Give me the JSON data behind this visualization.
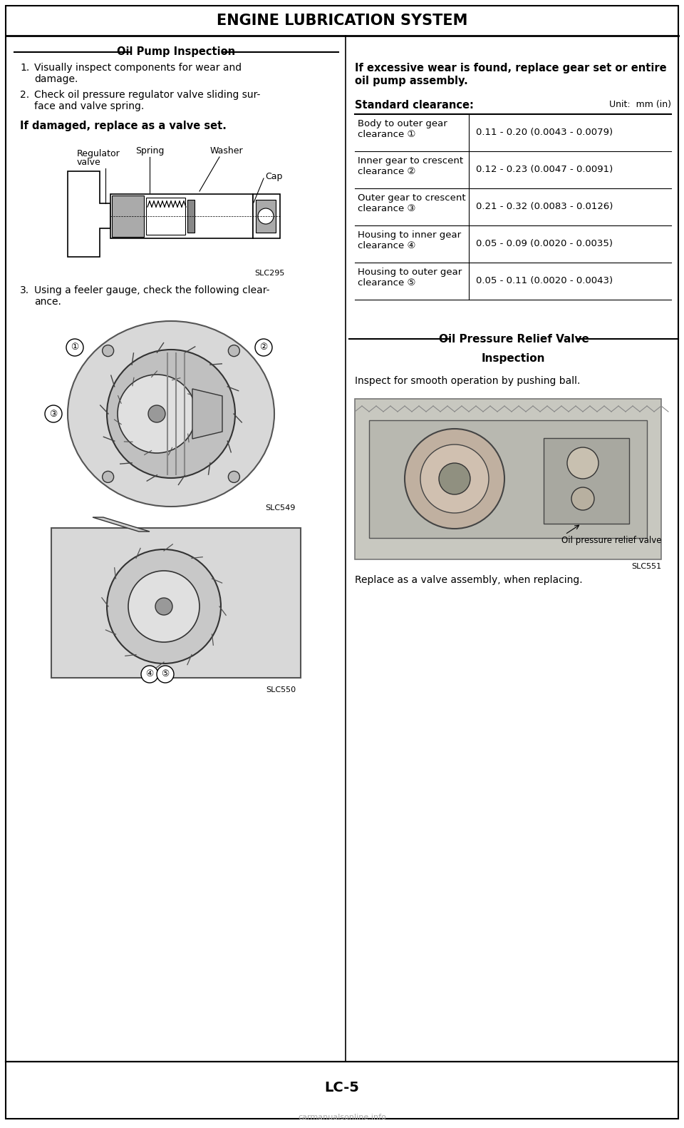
{
  "page_title": "ENGINE LUBRICATION SYSTEM",
  "page_number": "LC-5",
  "bg_color": "#ffffff",
  "border_color": "#000000",
  "section1_title": "Oil Pump Inspection",
  "section2_title": "Oil Pressure Relief Valve",
  "section2_subtitle": "Inspection",
  "left_col_items": [
    {
      "num": "1.",
      "lines": [
        "Visually inspect components for wear and",
        "damage."
      ]
    },
    {
      "num": "2.",
      "lines": [
        "Check oil pressure regulator valve sliding sur-",
        "face and valve spring."
      ]
    }
  ],
  "left_bold": "If damaged, replace as a valve set.",
  "item3_lines": [
    "Using a feeler gauge, check the following clear-",
    "ance."
  ],
  "slc_labels": [
    "SLC295",
    "SLC549",
    "SLC550",
    "SLC551"
  ],
  "diagram1_labels": {
    "spring": "Spring",
    "washer": "Washer",
    "regulator": "Regulator\nvalve",
    "cap": "Cap"
  },
  "diagram4_label": "Oil pressure relief valve",
  "right_bold1": "If excessive wear is found, replace gear set or entire",
  "right_bold2": "oil pump assembly.",
  "table_header_left": "Standard clearance:",
  "table_header_right": "Unit:  mm (in)",
  "table_rows": [
    {
      "left1": "Body to outer gear",
      "left2": "clearance ①",
      "right": "0.11 - 0.20 (0.0043 - 0.0079)"
    },
    {
      "left1": "Inner gear to crescent",
      "left2": "clearance ②",
      "right": "0.12 - 0.23 (0.0047 - 0.0091)"
    },
    {
      "left1": "Outer gear to crescent",
      "left2": "clearance ③",
      "right": "0.21 - 0.32 (0.0083 - 0.0126)"
    },
    {
      "left1": "Housing to inner gear",
      "left2": "clearance ④",
      "right": "0.05 - 0.09 (0.0020 - 0.0035)"
    },
    {
      "left1": "Housing to outer gear",
      "left2": "clearance ⑤",
      "right": "0.05 - 0.11 (0.0020 - 0.0043)"
    }
  ],
  "inspect_text": "Inspect for smooth operation by pushing ball.",
  "replace_text": "Replace as a valve assembly, when replacing.",
  "footer_text": "carmanualsonline.info"
}
